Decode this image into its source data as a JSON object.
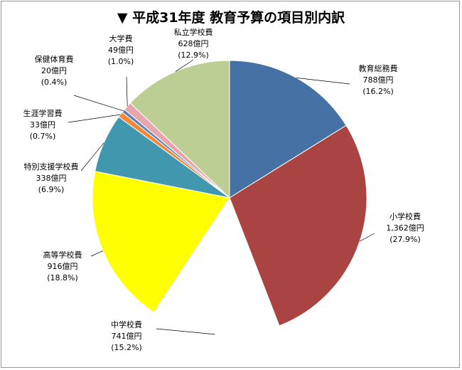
{
  "chart_data": {
    "type": "pie",
    "title": "▼ 平成31年度 教育予算の項目別内訳",
    "unit": "億円",
    "slices": [
      {
        "name": "教育総務費",
        "value": 788,
        "value_label": "788億円",
        "pct_label": "(16.2%)",
        "color": "#4671A5"
      },
      {
        "name": "小学校費",
        "value": 1362,
        "value_label": "1,362億円",
        "pct_label": "(27.9%)",
        "color": "#A94442"
      },
      {
        "name": "中学校費",
        "value": 741,
        "value_label": "741億円",
        "pct_label": "(15.2%)",
        "color": "#FFFFFF"
      },
      {
        "name": "高等学校費",
        "value": 916,
        "value_label": "916億円",
        "pct_label": "(18.8%)",
        "color": "#FFFF00"
      },
      {
        "name": "特別支援学校費",
        "value": 338,
        "value_label": "338億円",
        "pct_label": "(6.9%)",
        "color": "#4197AE"
      },
      {
        "name": "生涯学習費",
        "value": 33,
        "value_label": "33億円",
        "pct_label": "(0.7%)",
        "color": "#F08A3A"
      },
      {
        "name": "保健体育費",
        "value": 20,
        "value_label": "20億円",
        "pct_label": "(0.4%)",
        "color": "#5B7FB8"
      },
      {
        "name": "大学費",
        "value": 49,
        "value_label": "49億円",
        "pct_label": "(1.0%)",
        "color": "#E6A6AC"
      },
      {
        "name": "私立学校費",
        "value": 628,
        "value_label": "628億円",
        "pct_label": "(12.9%)",
        "color": "#BCCE93"
      }
    ]
  }
}
